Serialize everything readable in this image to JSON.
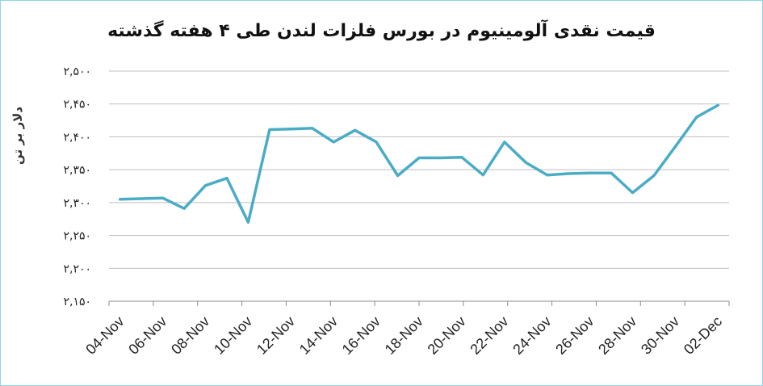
{
  "chart_data": {
    "type": "line",
    "title": "قیمت نقدی آلومینیوم در بورس فلزات لندن طی ۴ هفته گذشته",
    "ylabel": "دلار بر تن",
    "xlabel": "",
    "ylim": [
      2150,
      2500
    ],
    "yticks": [
      2150,
      2200,
      2250,
      2300,
      2350,
      2400,
      2450,
      2500
    ],
    "ytick_labels": [
      "۲,۱۵۰",
      "۲,۲۰۰",
      "۲,۲۵۰",
      "۲,۳۰۰",
      "۲,۳۵۰",
      "۲,۴۰۰",
      "۲,۴۵۰",
      "۲,۵۰۰"
    ],
    "x_tick_labels": [
      "04-Nov",
      "06-Nov",
      "08-Nov",
      "10-Nov",
      "12-Nov",
      "14-Nov",
      "16-Nov",
      "18-Nov",
      "20-Nov",
      "22-Nov",
      "24-Nov",
      "26-Nov",
      "28-Nov",
      "30-Nov",
      "02-Dec"
    ],
    "grid": true,
    "color": "#4bacc6",
    "x": [
      "04-Nov",
      "05-Nov",
      "06-Nov",
      "07-Nov",
      "08-Nov",
      "09-Nov",
      "10-Nov",
      "11-Nov",
      "12-Nov",
      "13-Nov",
      "14-Nov",
      "15-Nov",
      "16-Nov",
      "17-Nov",
      "18-Nov",
      "19-Nov",
      "20-Nov",
      "21-Nov",
      "22-Nov",
      "23-Nov",
      "24-Nov",
      "25-Nov",
      "26-Nov",
      "27-Nov",
      "28-Nov",
      "29-Nov",
      "30-Nov",
      "01-Dec",
      "02-Dec"
    ],
    "values": [
      2305,
      2306,
      2307,
      2291,
      2326,
      2337,
      2270,
      2411,
      2412,
      2413,
      2392,
      2410,
      2392,
      2341,
      2368,
      2368,
      2369,
      2342,
      2392,
      2361,
      2342,
      2344,
      2345,
      2345,
      2315,
      2341,
      2385,
      2430,
      2448
    ]
  }
}
